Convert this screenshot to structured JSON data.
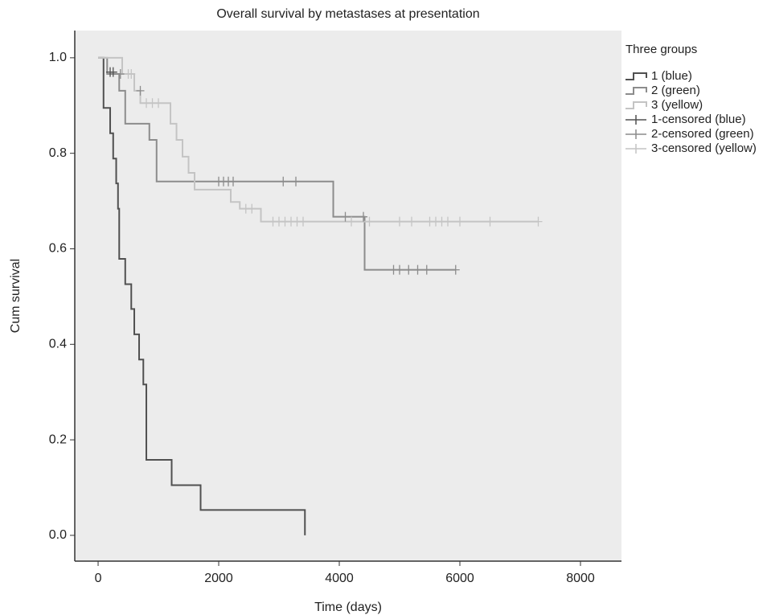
{
  "chart_data": {
    "type": "line",
    "drawstyle": "steps-post",
    "title": "Overall survival by metastases at presentation",
    "xlabel": "Time (days)",
    "ylabel": "Cum survival",
    "legend_title": "Three groups",
    "legend": "right",
    "xlim": [
      -387,
      8680
    ],
    "ylim": [
      -0.054,
      1.057
    ],
    "xticks": [
      0,
      2000,
      4000,
      6000,
      8000
    ],
    "yticks": [
      {
        "value": 0,
        "label": "0.0"
      },
      {
        "value": 0.2,
        "label": "0.2"
      },
      {
        "value": 0.4,
        "label": "0.4"
      },
      {
        "value": 0.6,
        "label": "0.6"
      },
      {
        "value": 0.8,
        "label": "0.8"
      },
      {
        "value": 1,
        "label": "1.0"
      }
    ],
    "series": [
      {
        "name": "1 (blue)",
        "color": "#505050",
        "marker": "step",
        "x": [
          0,
          90,
          200,
          250,
          300,
          330,
          350,
          450,
          550,
          600,
          680,
          750,
          800,
          1220,
          1700,
          3430
        ],
        "values": [
          1.0,
          0.895,
          0.842,
          0.789,
          0.737,
          0.684,
          0.579,
          0.526,
          0.474,
          0.421,
          0.368,
          0.316,
          0.158,
          0.105,
          0.053,
          0.0
        ]
      },
      {
        "name": "2 (green)",
        "color": "#8c8c8c",
        "marker": "step",
        "x": [
          0,
          150,
          350,
          450,
          850,
          970,
          3900,
          4420,
          5930
        ],
        "values": [
          1.0,
          0.966,
          0.931,
          0.862,
          0.828,
          0.741,
          0.667,
          0.556,
          0.556
        ]
      },
      {
        "name": "3 (yellow)",
        "color": "#c4c4c4",
        "marker": "step",
        "x": [
          0,
          400,
          600,
          700,
          1200,
          1300,
          1400,
          1500,
          1600,
          2200,
          2350,
          2700,
          7300
        ],
        "values": [
          1.0,
          0.966,
          0.931,
          0.905,
          0.862,
          0.828,
          0.793,
          0.759,
          0.724,
          0.698,
          0.684,
          0.657,
          0.657
        ]
      },
      {
        "name": "1-censored (blue)",
        "color": "#505050",
        "marker": "+",
        "x": [
          200,
          250
        ],
        "values": [
          0.97,
          0.97
        ]
      },
      {
        "name": "2-censored (green)",
        "color": "#8c8c8c",
        "marker": "+",
        "x": [
          370,
          700,
          2000,
          2080,
          2160,
          2240,
          3070,
          3280,
          4100,
          4400,
          4900,
          5000,
          5150,
          5300,
          5450,
          5930
        ],
        "values": [
          0.966,
          0.931,
          0.741,
          0.741,
          0.741,
          0.741,
          0.741,
          0.741,
          0.667,
          0.667,
          0.556,
          0.556,
          0.556,
          0.556,
          0.556,
          0.556
        ]
      },
      {
        "name": "3-censored (yellow)",
        "color": "#c4c4c4",
        "marker": "+",
        "x": [
          500,
          550,
          800,
          900,
          1000,
          2450,
          2550,
          2900,
          3000,
          3100,
          3200,
          3300,
          3400,
          4200,
          4500,
          5000,
          5200,
          5500,
          5600,
          5700,
          5800,
          6000,
          6500,
          7300
        ],
        "values": [
          0.966,
          0.966,
          0.905,
          0.905,
          0.905,
          0.684,
          0.684,
          0.657,
          0.657,
          0.657,
          0.657,
          0.657,
          0.657,
          0.657,
          0.657,
          0.657,
          0.657,
          0.657,
          0.657,
          0.657,
          0.657,
          0.657,
          0.657,
          0.657
        ]
      }
    ]
  }
}
